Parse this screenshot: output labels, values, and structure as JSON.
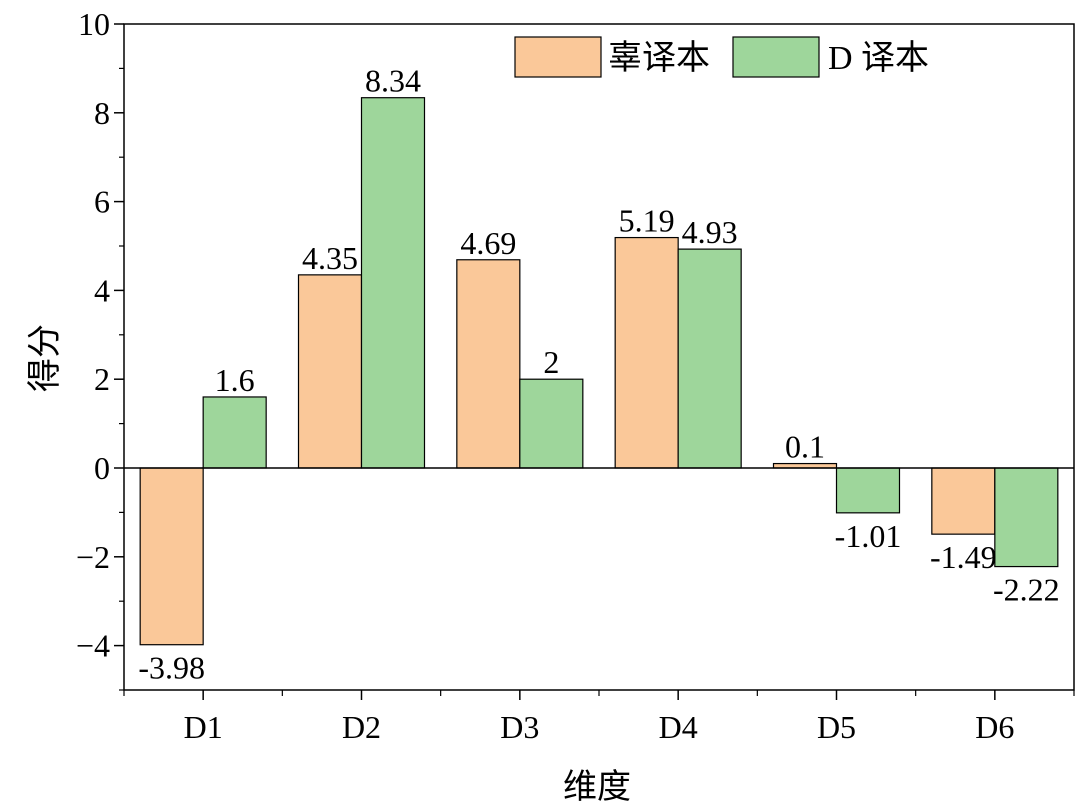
{
  "chart_data": {
    "type": "bar",
    "categories": [
      "D1",
      "D2",
      "D3",
      "D4",
      "D5",
      "D6"
    ],
    "series": [
      {
        "name": "辜译本",
        "color": "#fac899",
        "values": [
          -3.98,
          4.35,
          4.69,
          5.19,
          0.1,
          -1.49
        ]
      },
      {
        "name": "D 译本",
        "color": "#9ed69b",
        "values": [
          1.6,
          8.34,
          2,
          4.93,
          -1.01,
          -2.22
        ]
      }
    ],
    "data_labels": [
      [
        "-3.98",
        "4.35",
        "4.69",
        "5.19",
        "0.1",
        "-1.49"
      ],
      [
        "1.6",
        "8.34",
        "2",
        "4.93",
        "-1.01",
        "-2.22"
      ]
    ],
    "title": "",
    "xlabel": "维度",
    "ylabel": "得分",
    "ylim": [
      -5,
      10
    ],
    "yticks": [
      -4,
      -2,
      0,
      2,
      4,
      6,
      8,
      10
    ],
    "ytick_labels": [
      "−4",
      "−2",
      "0",
      "2",
      "4",
      "6",
      "8",
      "10"
    ],
    "grid": false,
    "legend_position": "top-right"
  }
}
